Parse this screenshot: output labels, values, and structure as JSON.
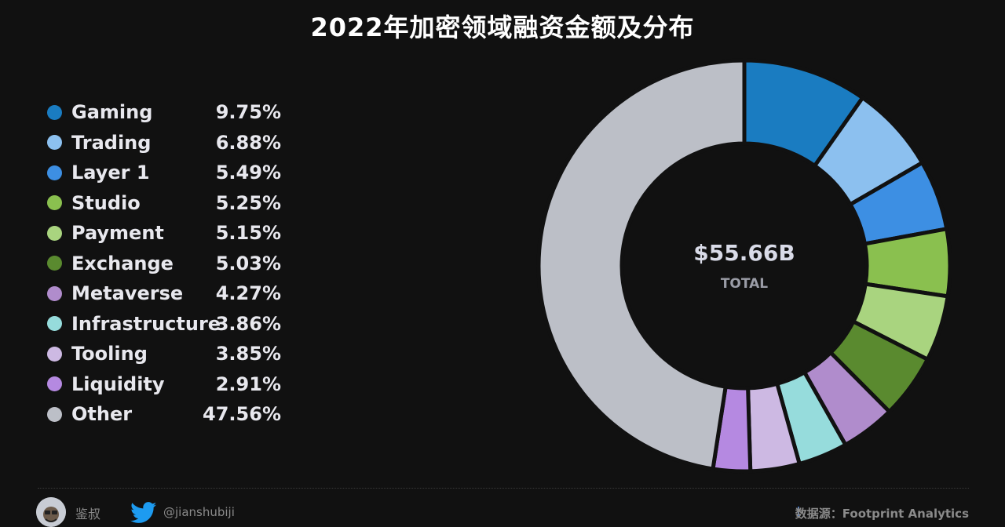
{
  "title": "2022年加密领域融资金额及分布",
  "center": {
    "value": "$55.66B",
    "label": "TOTAL"
  },
  "footer": {
    "author": "鉴叔",
    "handle": "@jianshubiji",
    "source": "数据源：Footprint Analytics"
  },
  "chart_data": {
    "type": "pie",
    "categories": [
      "Gaming",
      "Trading",
      "Layer 1",
      "Studio",
      "Payment",
      "Exchange",
      "Metaverse",
      "Infrastructure",
      "Tooling",
      "Liquidity",
      "Other"
    ],
    "values": [
      9.75,
      6.88,
      5.49,
      5.25,
      5.15,
      5.03,
      4.27,
      3.86,
      3.85,
      2.91,
      47.56
    ],
    "labels": [
      "9.75%",
      "6.88%",
      "5.49%",
      "5.25%",
      "5.15%",
      "5.03%",
      "4.27%",
      "3.86%",
      "3.85%",
      "2.91%",
      "47.56%"
    ],
    "colors": [
      "#1a7cc1",
      "#8cc0ef",
      "#3d8fe3",
      "#8ac04f",
      "#a9d47f",
      "#5a8a2f",
      "#b08ccc",
      "#96dcdc",
      "#cdb9e3",
      "#b589e1",
      "#bcbfc7"
    ],
    "title": "2022年加密领域融资金额及分布",
    "legend_position": "left",
    "donut": true
  }
}
